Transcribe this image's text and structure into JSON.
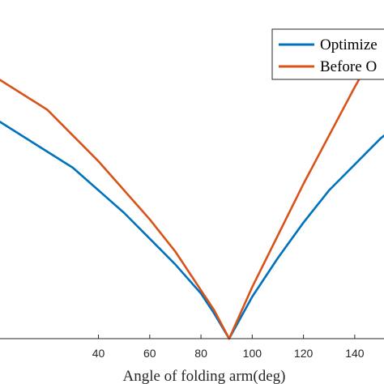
{
  "chart_data": {
    "type": "line",
    "xlabel": "Angle of folding arm(deg)",
    "ylabel": "",
    "title": "",
    "xlim": [
      0,
      153
    ],
    "x_ticks": [
      40,
      60,
      80,
      100,
      120,
      140
    ],
    "x_tick_labels": [
      "40",
      "60",
      "80",
      "100",
      "120",
      "140"
    ],
    "grid": false,
    "legend_position": "top-right",
    "series": [
      {
        "name": "Optimize",
        "color": "#0072BD",
        "x": [
          0,
          20,
          30,
          40,
          50,
          60,
          70,
          80,
          85,
          91,
          100,
          110,
          120,
          130,
          140,
          150,
          153
        ],
        "y": [
          0.68,
          0.58,
          0.53,
          0.46,
          0.39,
          0.31,
          0.23,
          0.14,
          0.08,
          0.0,
          0.13,
          0.25,
          0.36,
          0.46,
          0.54,
          0.62,
          0.64
        ]
      },
      {
        "name": "Before O",
        "color": "#D95319",
        "x": [
          0,
          20,
          30,
          40,
          50,
          60,
          70,
          80,
          85,
          91,
          100,
          110,
          120,
          130,
          140,
          150,
          153
        ],
        "y": [
          0.81,
          0.71,
          0.63,
          0.55,
          0.46,
          0.37,
          0.27,
          0.15,
          0.09,
          0.0,
          0.16,
          0.32,
          0.48,
          0.63,
          0.78,
          0.92,
          0.96
        ]
      }
    ],
    "ylim": [
      0,
      1.05
    ]
  }
}
